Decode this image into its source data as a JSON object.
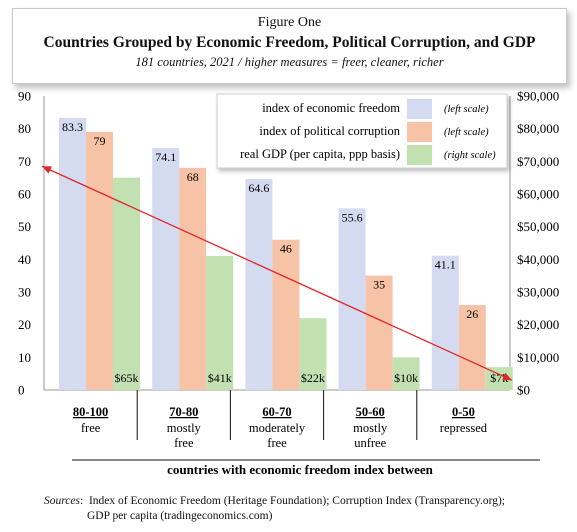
{
  "header": {
    "figure_label": "Figure One",
    "title": "Countries Grouped by Economic Freedom, Political Corruption, and GDP",
    "subtitle": "181 countries, 2021 / higher measures = freer, cleaner, richer"
  },
  "sources": {
    "label": "Sources",
    "line1": "Index of Economic Freedom (Heritage Foundation); Corruption Index (Transparency.org);",
    "line2": "GDP per capita (tradingeconomics.com)"
  },
  "colors": {
    "freedom": "#d4dbf0",
    "corruption": "#f7c3a6",
    "gdp": "#c2e1b0",
    "trend": "#e0262a"
  },
  "chart_data": {
    "type": "bar",
    "xlabel": "countries with economic freedom index between",
    "left_axis": {
      "ylim": [
        0,
        90
      ],
      "ticks": [
        "0",
        "10",
        "20",
        "30",
        "40",
        "50",
        "60",
        "70",
        "80",
        "90"
      ]
    },
    "right_axis": {
      "ylim": [
        0,
        90000
      ],
      "ticks": [
        "$0",
        "$10,000",
        "$20,000",
        "$30,000",
        "$40,000",
        "$50,000",
        "$60,000",
        "$70,000",
        "$80,000",
        "$90,000"
      ]
    },
    "categories": [
      {
        "range": "80-100",
        "desc1": "free",
        "desc2": ""
      },
      {
        "range": "70-80",
        "desc1": "mostly",
        "desc2": "free"
      },
      {
        "range": "60-70",
        "desc1": "moderately",
        "desc2": "free"
      },
      {
        "range": "50-60",
        "desc1": "mostly",
        "desc2": "unfree"
      },
      {
        "range": "0-50",
        "desc1": "repressed",
        "desc2": ""
      }
    ],
    "series": [
      {
        "name": "index of economic freedom",
        "scale": "(left scale)",
        "values": [
          83.3,
          74.1,
          64.6,
          55.6,
          41.1
        ],
        "labels": [
          "83.3",
          "74.1",
          "64.6",
          "55.6",
          "41.1"
        ]
      },
      {
        "name": "index of political corruption",
        "scale": "(left scale)",
        "values": [
          79,
          68,
          46,
          35,
          26
        ],
        "labels": [
          "79",
          "68",
          "46",
          "35",
          "26"
        ]
      },
      {
        "name": "real GDP (per capita, ppp basis)",
        "scale": "(right scale)",
        "values": [
          65000,
          41000,
          22000,
          10000,
          7000
        ],
        "labels": [
          "$65k",
          "$41k",
          "$22k",
          "$10k",
          "$7k"
        ]
      }
    ],
    "trend_line": {
      "from_left_value": 68.5,
      "to_right_value": 3
    },
    "legend_position": "top-right",
    "grid": false
  }
}
